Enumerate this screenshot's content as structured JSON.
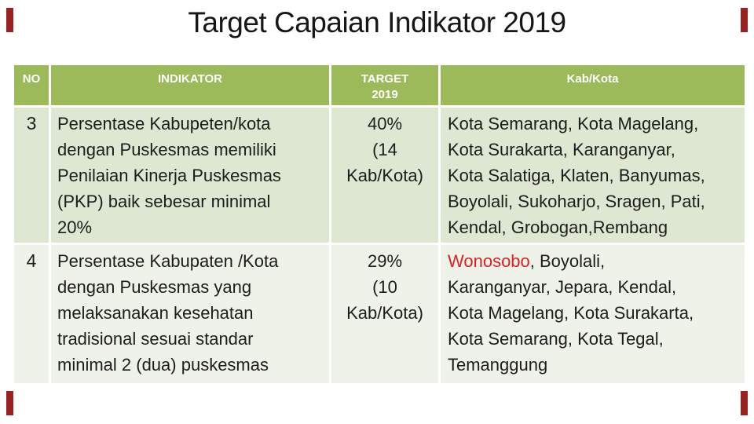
{
  "slide": {
    "title": "Target Capaian Indikator 2019"
  },
  "table": {
    "headers": {
      "no": "NO",
      "indikator": "INDIKATOR",
      "target": "TARGET\n2019",
      "kabkota": "Kab/Kota"
    },
    "rows": [
      {
        "no": "3",
        "indikator": "Persentase Kabupeten/kota\ndengan Puskesmas memiliki\nPenilaian Kinerja Puskesmas\n(PKP) baik sebesar minimal\n20%",
        "target": "40%\n(14\nKab/Kota)",
        "kabkota_highlight": "",
        "kabkota_rest": "Kota Semarang, Kota Magelang,\nKota Surakarta, Karanganyar,\nKota Salatiga, Klaten, Banyumas,\nBoyolali, Sukoharjo, Sragen, Pati,\nKendal, Grobogan,Rembang"
      },
      {
        "no": "4",
        "indikator": "Persentase Kabupaten /Kota\ndengan Puskesmas yang\nmelaksanakan kesehatan\ntradisional sesuai standar\nminimal 2 (dua) puskesmas",
        "target": "29%\n(10\nKab/Kota)",
        "kabkota_highlight": "Wonosobo",
        "kabkota_rest": ", Boyolali,\nKaranganyar, Jepara, Kendal,\nKota Magelang, Kota Surakarta,\nKota Semarang, Kota Tegal,\nTemanggung"
      }
    ]
  },
  "colors": {
    "header_bg": "#9cba59",
    "header_text": "#ffffff",
    "row_a_bg": "#dee7d2",
    "row_b_bg": "#eff2e9",
    "body_text": "#1c1c1c",
    "highlight_text": "#e01f1f",
    "grid_line": "#ffffff",
    "accent": "#9b2121",
    "title_text": "#161616"
  }
}
